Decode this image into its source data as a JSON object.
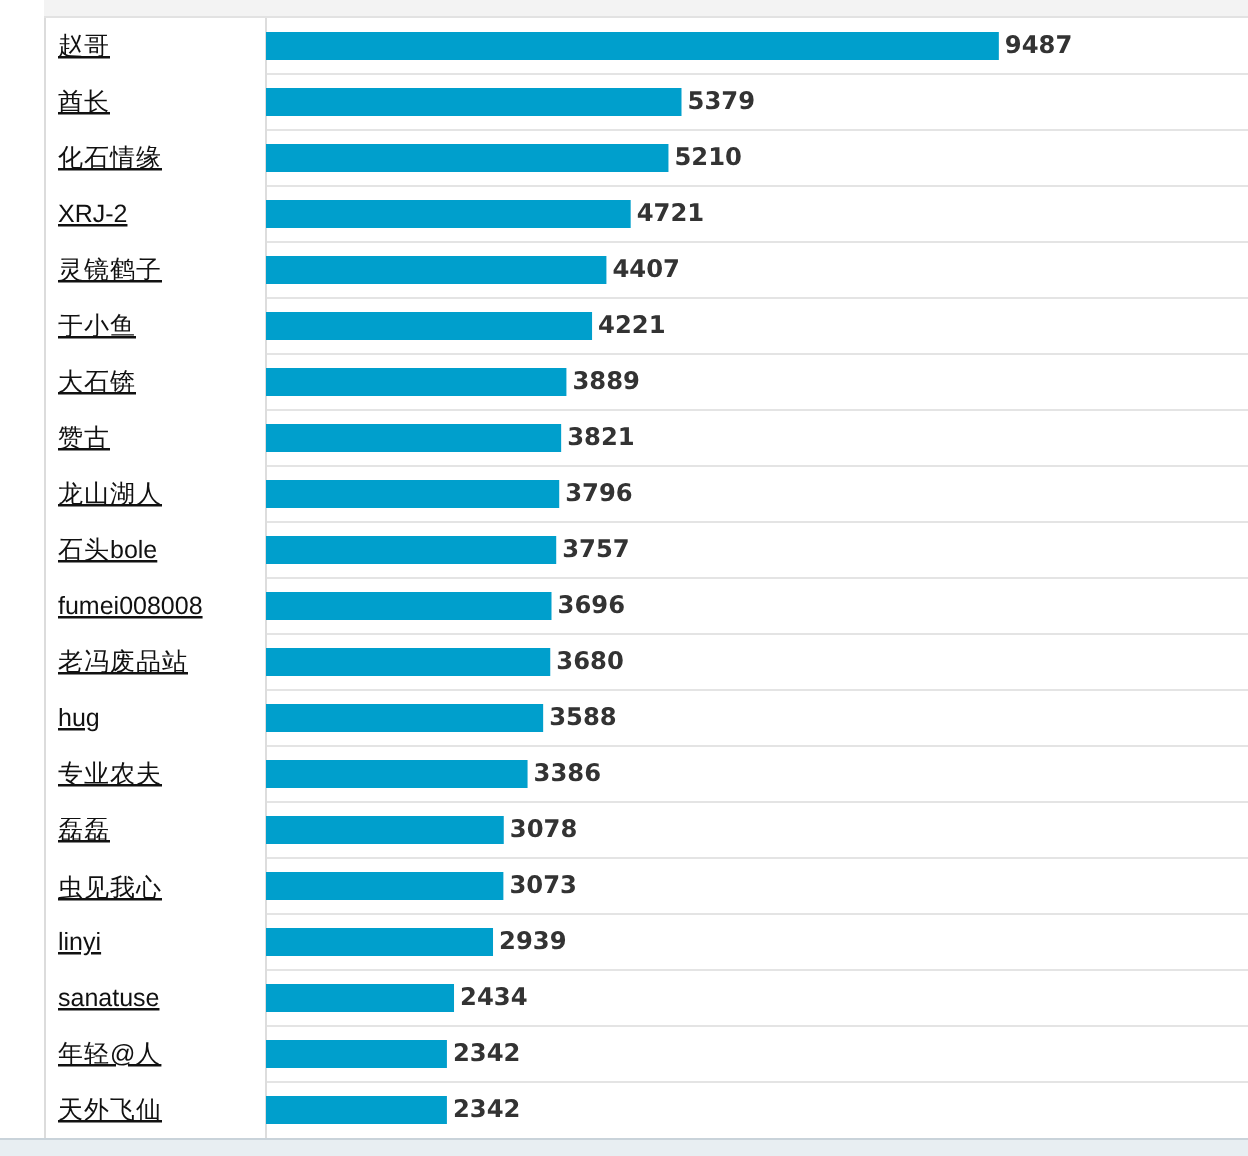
{
  "chart_data": {
    "type": "bar",
    "orientation": "horizontal",
    "categories": [
      "赵哥",
      "酋长",
      "化石情缘",
      "XRJ-2",
      "灵镜鹤子",
      "于小鱼",
      "大石锛",
      "赞古",
      "龙山湖人",
      "石头bole",
      "fumei008008",
      "老冯废品站",
      "hug",
      "专业农夫",
      "磊磊",
      "虫见我心",
      "linyi",
      "sanatuse",
      "年轻@人",
      "天外飞仙"
    ],
    "values": [
      9487,
      5379,
      5210,
      4721,
      4407,
      4221,
      3889,
      3821,
      3796,
      3757,
      3696,
      3680,
      3588,
      3386,
      3078,
      3073,
      2939,
      2434,
      2342,
      2342
    ],
    "color": "#009fcc",
    "data_labels": true,
    "grid": "y",
    "tick_labels": "y"
  }
}
